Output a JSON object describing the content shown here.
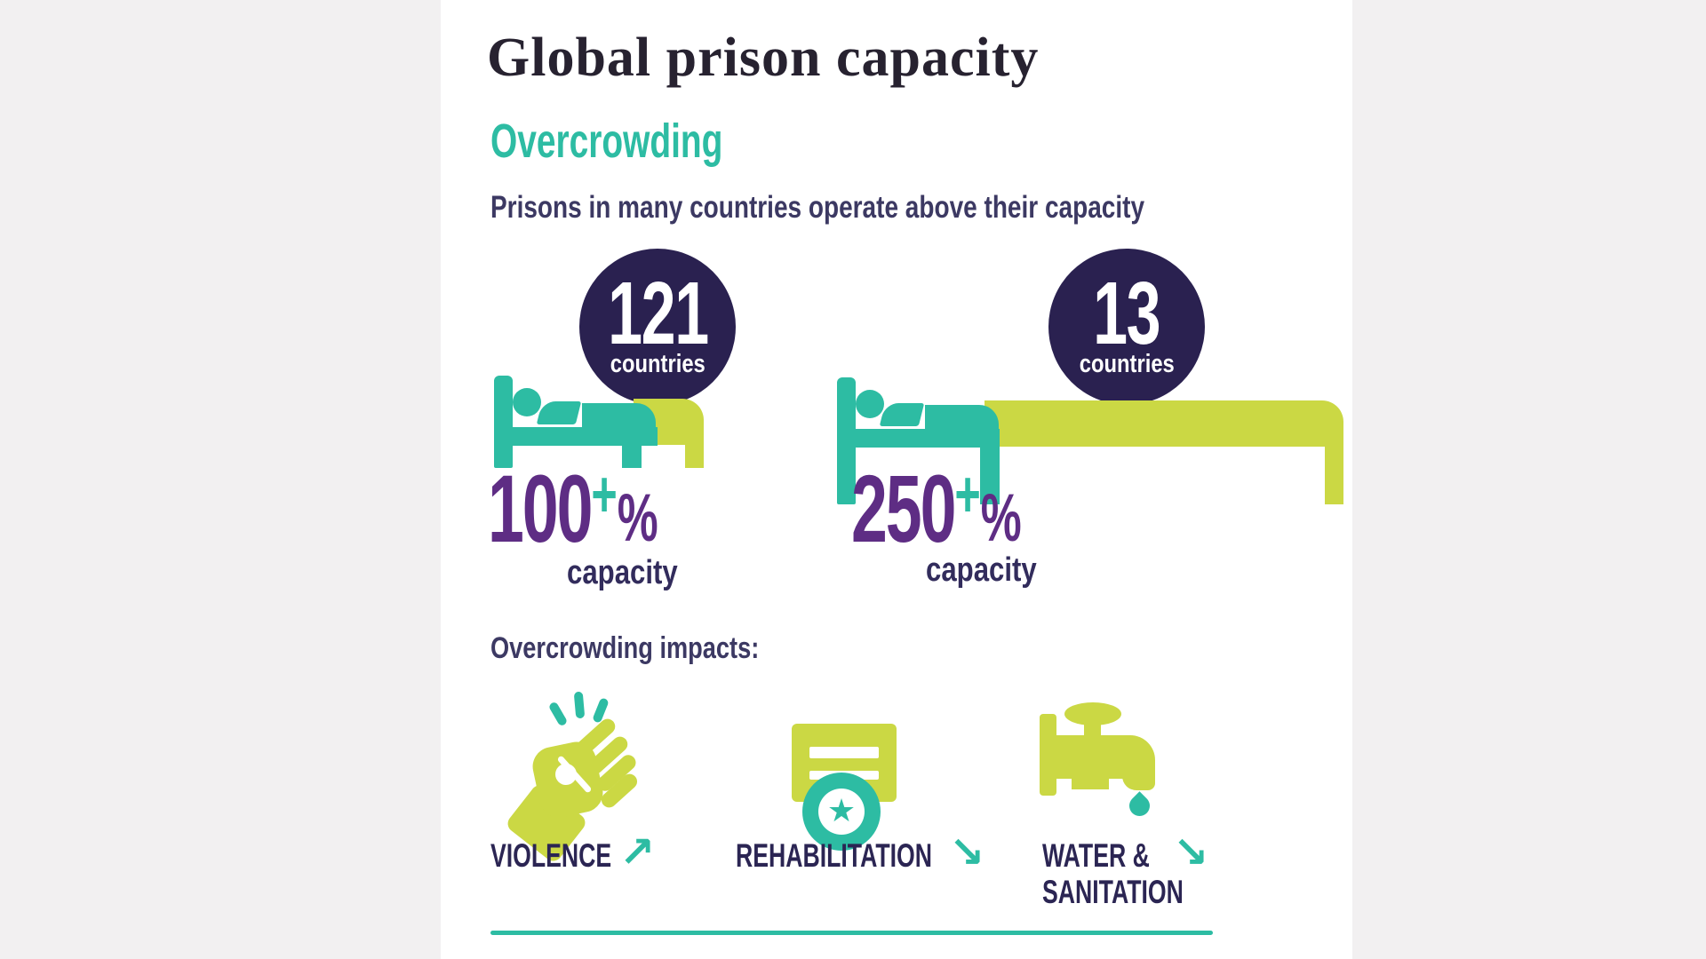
{
  "page_title": "Global prison capacity",
  "section": {
    "heading": "Overcrowding",
    "subtitle": "Prisons in many countries operate above their capacity"
  },
  "stats": [
    {
      "countries_count": "121",
      "countries_word": "countries",
      "percent": "100",
      "plus": "+",
      "percent_sign": "%",
      "capacity_word": "capacity"
    },
    {
      "countries_count": "13",
      "countries_word": "countries",
      "percent": "250",
      "plus": "+",
      "percent_sign": "%",
      "capacity_word": "capacity"
    }
  ],
  "impacts": {
    "heading": "Overcrowding impacts:",
    "star_glyph": "★",
    "items": [
      {
        "icon": "fist-icon",
        "line1": "VIOLENCE",
        "line2": "",
        "arrow": "↗",
        "trend": "increase"
      },
      {
        "icon": "certificate-icon",
        "line1": "REHABILITATION",
        "line2": "",
        "arrow": "↘",
        "trend": "decrease"
      },
      {
        "icon": "water-tap-icon",
        "line1": "WATER &",
        "line2": "SANITATION",
        "arrow": "↘",
        "trend": "decrease"
      }
    ]
  },
  "colors": {
    "teal": "#2dbca3",
    "lime": "#cbd844",
    "circle_navy": "#2a2150",
    "purple": "#5e2d84",
    "ink": "#3c3963",
    "page": "#ffffff",
    "background": "#f2f0f1"
  },
  "chart_data": {
    "type": "pictogram",
    "title": "Global prison capacity",
    "section": "Overcrowding",
    "subtitle": "Prisons in many countries operate above their capacity",
    "series": [
      {
        "occupancy": "100+% capacity",
        "countries": 121
      },
      {
        "occupancy": "250+% capacity",
        "countries": 13
      }
    ],
    "impacts": [
      {
        "label": "VIOLENCE",
        "direction": "up"
      },
      {
        "label": "REHABILITATION",
        "direction": "down"
      },
      {
        "label": "WATER & SANITATION",
        "direction": "down"
      }
    ]
  }
}
